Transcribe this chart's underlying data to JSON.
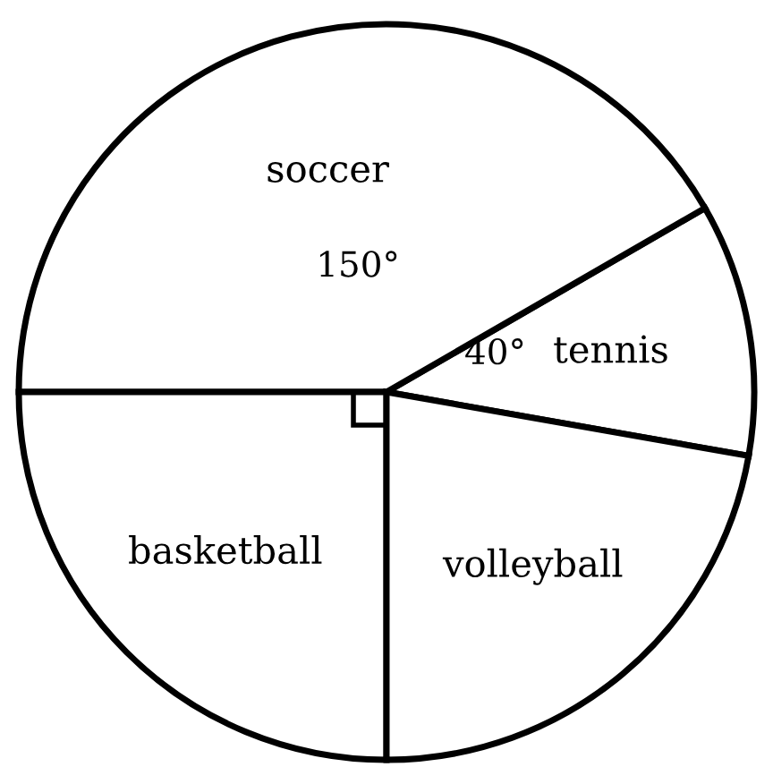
{
  "chart_data": {
    "type": "pie",
    "categories": [
      "tennis",
      "soccer",
      "basketball",
      "volleyball"
    ],
    "values": [
      40,
      150,
      90,
      80
    ],
    "colors": [
      "#ffffff",
      "#ffffff",
      "#ffffff",
      "#ffffff"
    ],
    "value_labels": [
      "40°",
      "150°",
      null,
      null
    ]
  }
}
